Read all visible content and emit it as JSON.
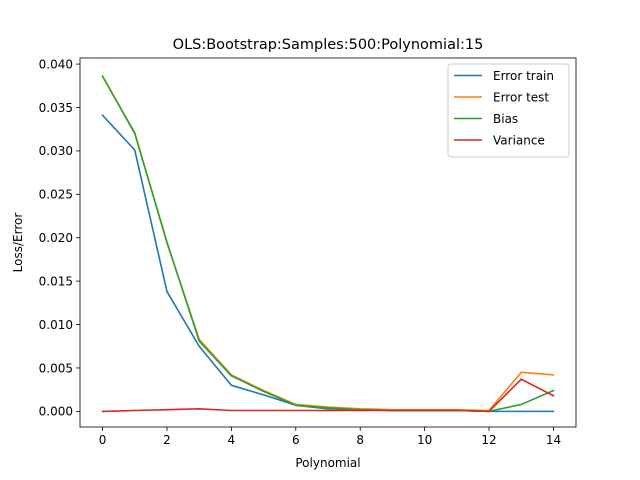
{
  "chart_data": {
    "type": "line",
    "title": "OLS:Bootstrap:Samples:500:Polynomial:15",
    "xlabel": "Polynomial",
    "ylabel": "Loss/Error",
    "xlim": [
      -0.7,
      14.7
    ],
    "ylim": [
      -0.0018,
      0.0407
    ],
    "xticks": [
      0,
      2,
      4,
      6,
      8,
      10,
      12,
      14
    ],
    "xtick_labels": [
      "0",
      "2",
      "4",
      "6",
      "8",
      "10",
      "12",
      "14"
    ],
    "yticks": [
      0.0,
      0.005,
      0.01,
      0.015,
      0.02,
      0.025,
      0.03,
      0.035,
      0.04
    ],
    "ytick_labels": [
      "0.000",
      "0.005",
      "0.010",
      "0.015",
      "0.020",
      "0.025",
      "0.030",
      "0.035",
      "0.040"
    ],
    "grid": false,
    "legend_position": "top-right",
    "x": [
      0,
      1,
      2,
      3,
      4,
      5,
      6,
      7,
      8,
      9,
      10,
      11,
      12,
      13,
      14
    ],
    "series": [
      {
        "name": "Error train",
        "color": "#1f77b4",
        "values": [
          0.0341,
          0.0301,
          0.0138,
          0.0075,
          0.003,
          0.0019,
          0.0007,
          0.0003,
          0.0002,
          0.0001,
          0.0001,
          0.0001,
          0.0,
          0.0,
          0.0
        ]
      },
      {
        "name": "Error test",
        "color": "#ff7f0e",
        "values": [
          0.0386,
          0.0321,
          0.0194,
          0.0083,
          0.0042,
          0.0024,
          0.0008,
          0.0005,
          0.0003,
          0.0002,
          0.0002,
          0.0002,
          0.0001,
          0.0045,
          0.0042
        ]
      },
      {
        "name": "Bias",
        "color": "#2ca02c",
        "values": [
          0.0386,
          0.032,
          0.0195,
          0.0081,
          0.0041,
          0.0023,
          0.0007,
          0.0004,
          0.0002,
          0.0001,
          0.0001,
          0.0001,
          0.0,
          0.0008,
          0.0024
        ]
      },
      {
        "name": "Variance",
        "color": "#d62728",
        "values": [
          0.0,
          0.0001,
          0.0002,
          0.0003,
          0.0001,
          0.0001,
          0.0001,
          0.0001,
          0.0001,
          0.0001,
          0.0001,
          0.0001,
          0.0,
          0.0037,
          0.0018
        ]
      }
    ]
  }
}
